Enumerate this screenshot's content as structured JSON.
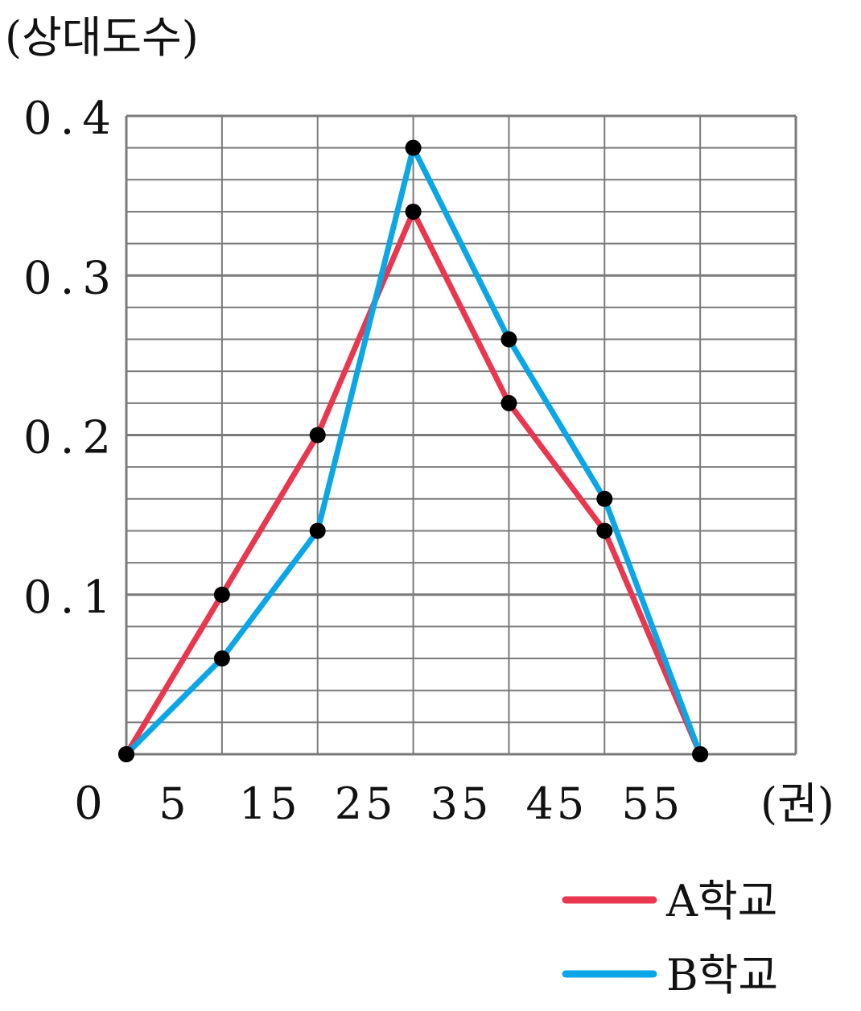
{
  "chart_data": {
    "type": "line",
    "ylabel": "(상대도수)",
    "xlabel": "(권)",
    "origin_label": "0",
    "x_tick_labels": [
      "5",
      "15",
      "25",
      "35",
      "45",
      "55"
    ],
    "y_tick_labels": [
      "0.1",
      "0.2",
      "0.3",
      "0.4"
    ],
    "x_ticks": [
      5,
      15,
      25,
      35,
      45,
      55
    ],
    "y_ticks": [
      0.1,
      0.2,
      0.3,
      0.4
    ],
    "xlim": [
      0,
      70
    ],
    "ylim": [
      0,
      0.4
    ],
    "y_minor_step": 0.02,
    "grid": true,
    "legend_position": "bottom-right",
    "series": [
      {
        "name": "A학교",
        "color": "#e8374f",
        "x": [
          0,
          10,
          20,
          30,
          40,
          50,
          60
        ],
        "y": [
          0,
          0.1,
          0.2,
          0.34,
          0.22,
          0.14,
          0
        ]
      },
      {
        "name": "B학교",
        "color": "#0aa6e6",
        "x": [
          0,
          10,
          20,
          30,
          40,
          50,
          60
        ],
        "y": [
          0,
          0.06,
          0.14,
          0.38,
          0.26,
          0.16,
          0
        ]
      }
    ]
  }
}
